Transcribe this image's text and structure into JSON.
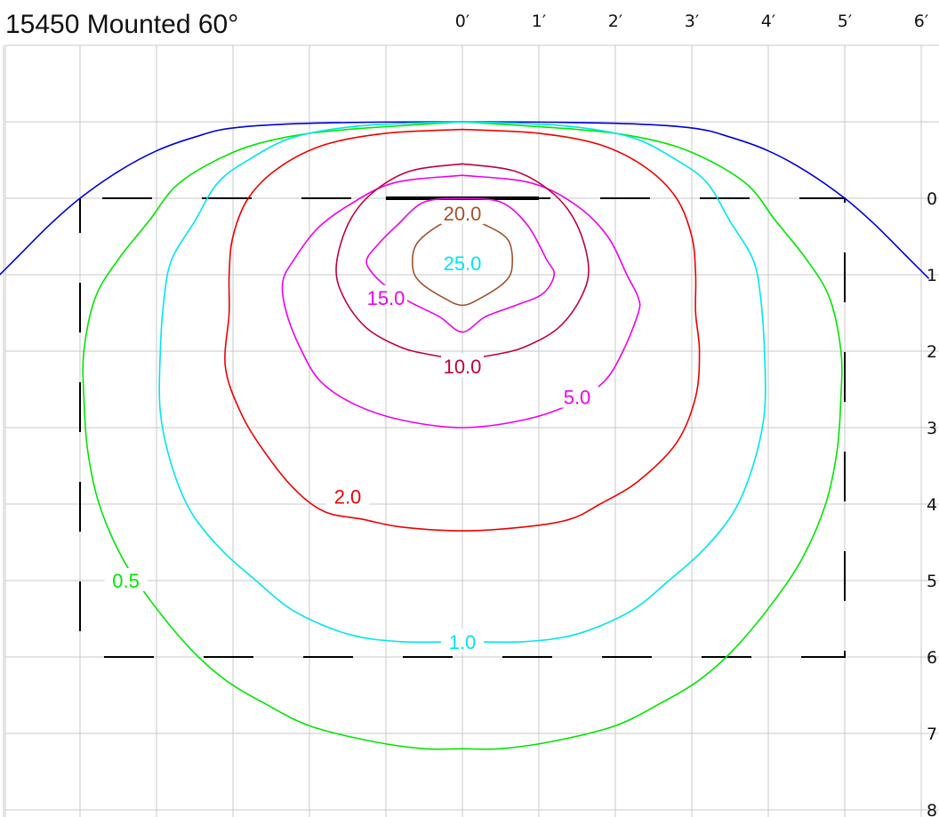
{
  "chart_data": {
    "type": "contour",
    "title": "15450 Mounted 60°",
    "x_tick_labels": [
      "0′",
      "1′",
      "2′",
      "3′",
      "4′",
      "5′",
      "6′"
    ],
    "y_tick_labels": [
      "0",
      "1",
      "2",
      "3",
      "4",
      "5",
      "6",
      "7",
      "8"
    ],
    "grid": true,
    "unit": "feet",
    "footprint_rectangle": {
      "x": [
        -5,
        5
      ],
      "y": [
        0,
        6
      ],
      "style": "dashed"
    },
    "fixture_bar": {
      "x": [
        -1,
        1
      ],
      "y": 0
    },
    "contours": [
      {
        "label": "0.5",
        "color": "#00e600",
        "label_pos": [
          -4.4,
          5.0
        ],
        "points": [
          [
            0,
            -1
          ],
          [
            1.5,
            -0.9
          ],
          [
            2.3,
            -0.8
          ],
          [
            3.0,
            -0.6
          ],
          [
            3.7,
            -0.2
          ],
          [
            4.1,
            0.3
          ],
          [
            4.5,
            0.8
          ],
          [
            4.8,
            1.3
          ],
          [
            4.95,
            2.0
          ],
          [
            4.95,
            2.6
          ],
          [
            4.9,
            3.3
          ],
          [
            4.75,
            4.0
          ],
          [
            4.45,
            4.7
          ],
          [
            4.05,
            5.3
          ],
          [
            3.55,
            5.9
          ],
          [
            3.1,
            6.3
          ],
          [
            2.6,
            6.6
          ],
          [
            2.0,
            6.9
          ],
          [
            1.2,
            7.1
          ],
          [
            0.5,
            7.2
          ],
          [
            0,
            7.2
          ],
          [
            -0.5,
            7.2
          ],
          [
            -1.2,
            7.1
          ],
          [
            -2.0,
            6.9
          ],
          [
            -2.6,
            6.6
          ],
          [
            -3.1,
            6.3
          ],
          [
            -3.55,
            5.9
          ],
          [
            -4.05,
            5.3
          ],
          [
            -4.45,
            4.7
          ],
          [
            -4.75,
            4.0
          ],
          [
            -4.9,
            3.3
          ],
          [
            -4.95,
            2.6
          ],
          [
            -4.95,
            2.0
          ],
          [
            -4.8,
            1.3
          ],
          [
            -4.5,
            0.8
          ],
          [
            -4.1,
            0.3
          ],
          [
            -3.7,
            -0.2
          ],
          [
            -3.0,
            -0.6
          ],
          [
            -2.3,
            -0.8
          ],
          [
            -1.5,
            -0.9
          ],
          [
            0,
            -1
          ]
        ]
      },
      {
        "label": "1.0",
        "color": "#00e5ee",
        "label_pos": [
          0,
          5.8
        ],
        "points": [
          [
            0,
            -1
          ],
          [
            1.3,
            -0.95
          ],
          [
            2.2,
            -0.8
          ],
          [
            2.8,
            -0.5
          ],
          [
            3.2,
            -0.2
          ],
          [
            3.5,
            0.3
          ],
          [
            3.8,
            0.8
          ],
          [
            3.9,
            1.3
          ],
          [
            3.95,
            2.0
          ],
          [
            3.95,
            2.8
          ],
          [
            3.8,
            3.5
          ],
          [
            3.55,
            4.1
          ],
          [
            3.15,
            4.6
          ],
          [
            2.7,
            5.0
          ],
          [
            2.2,
            5.4
          ],
          [
            1.5,
            5.7
          ],
          [
            0.8,
            5.8
          ],
          [
            0,
            5.8
          ],
          [
            -0.8,
            5.8
          ],
          [
            -1.5,
            5.7
          ],
          [
            -2.2,
            5.4
          ],
          [
            -2.7,
            5.0
          ],
          [
            -3.15,
            4.6
          ],
          [
            -3.55,
            4.1
          ],
          [
            -3.8,
            3.5
          ],
          [
            -3.95,
            2.8
          ],
          [
            -3.95,
            2.0
          ],
          [
            -3.9,
            1.3
          ],
          [
            -3.8,
            0.8
          ],
          [
            -3.5,
            0.3
          ],
          [
            -3.2,
            -0.2
          ],
          [
            -2.8,
            -0.5
          ],
          [
            -2.2,
            -0.8
          ],
          [
            -1.3,
            -0.95
          ],
          [
            0,
            -1
          ]
        ]
      },
      {
        "label": "2.0",
        "color": "#ee0000",
        "label_pos": [
          -1.5,
          3.9
        ],
        "points": [
          [
            0,
            -0.9
          ],
          [
            1.0,
            -0.85
          ],
          [
            1.8,
            -0.7
          ],
          [
            2.4,
            -0.4
          ],
          [
            2.8,
            0.0
          ],
          [
            3.0,
            0.5
          ],
          [
            3.05,
            1.0
          ],
          [
            3.05,
            1.5
          ],
          [
            3.1,
            2.0
          ],
          [
            3.05,
            2.6
          ],
          [
            2.8,
            3.2
          ],
          [
            2.3,
            3.7
          ],
          [
            1.8,
            4.0
          ],
          [
            1.4,
            4.2
          ],
          [
            0.8,
            4.3
          ],
          [
            0,
            4.35
          ],
          [
            -0.8,
            4.3
          ],
          [
            -1.3,
            4.2
          ],
          [
            -1.8,
            4.1
          ],
          [
            -2.2,
            3.8
          ],
          [
            -2.6,
            3.3
          ],
          [
            -2.9,
            2.8
          ],
          [
            -3.1,
            2.2
          ],
          [
            -3.05,
            1.5
          ],
          [
            -3.05,
            1.0
          ],
          [
            -3.0,
            0.5
          ],
          [
            -2.8,
            0.0
          ],
          [
            -2.4,
            -0.4
          ],
          [
            -1.8,
            -0.7
          ],
          [
            -1.0,
            -0.85
          ],
          [
            0,
            -0.9
          ]
        ]
      },
      {
        "label": "5.0",
        "color": "#ee00ee",
        "label_pos": [
          1.5,
          2.6
        ],
        "points": [
          [
            0,
            -0.3
          ],
          [
            0.9,
            -0.2
          ],
          [
            1.5,
            0.1
          ],
          [
            1.9,
            0.5
          ],
          [
            2.15,
            1.0
          ],
          [
            2.3,
            1.3
          ],
          [
            2.3,
            1.5
          ],
          [
            2.1,
            2.0
          ],
          [
            1.85,
            2.4
          ],
          [
            1.4,
            2.7
          ],
          [
            0.8,
            2.9
          ],
          [
            0,
            3.0
          ],
          [
            -0.8,
            2.9
          ],
          [
            -1.4,
            2.7
          ],
          [
            -1.85,
            2.4
          ],
          [
            -2.1,
            2.0
          ],
          [
            -2.3,
            1.5
          ],
          [
            -2.35,
            1.1
          ],
          [
            -2.2,
            0.8
          ],
          [
            -1.9,
            0.4
          ],
          [
            -1.5,
            0.1
          ],
          [
            -0.9,
            -0.2
          ],
          [
            0,
            -0.3
          ]
        ]
      },
      {
        "label": "10.0",
        "color": "#c0003a",
        "label_pos": [
          0,
          2.2
        ],
        "points": [
          [
            0,
            -0.45
          ],
          [
            0.7,
            -0.35
          ],
          [
            1.2,
            -0.05
          ],
          [
            1.5,
            0.35
          ],
          [
            1.65,
            0.9
          ],
          [
            1.55,
            1.3
          ],
          [
            1.25,
            1.7
          ],
          [
            0.8,
            1.95
          ],
          [
            0.4,
            2.05
          ],
          [
            0,
            2.1
          ],
          [
            -0.4,
            2.05
          ],
          [
            -0.8,
            1.95
          ],
          [
            -1.25,
            1.7
          ],
          [
            -1.55,
            1.3
          ],
          [
            -1.65,
            0.9
          ],
          [
            -1.5,
            0.35
          ],
          [
            -1.2,
            -0.05
          ],
          [
            -0.7,
            -0.35
          ],
          [
            0,
            -0.45
          ]
        ]
      },
      {
        "label": "15.0",
        "color": "#ee00ee",
        "label_pos": [
          -1.0,
          1.3
        ],
        "points": [
          [
            0,
            0.0
          ],
          [
            0.5,
            0.05
          ],
          [
            0.85,
            0.35
          ],
          [
            1.1,
            0.8
          ],
          [
            1.2,
            1.0
          ],
          [
            1.05,
            1.25
          ],
          [
            0.7,
            1.4
          ],
          [
            0.3,
            1.55
          ],
          [
            0,
            1.75
          ],
          [
            -0.3,
            1.55
          ],
          [
            -0.7,
            1.35
          ],
          [
            -1.0,
            1.15
          ],
          [
            -1.2,
            0.95
          ],
          [
            -1.25,
            0.8
          ],
          [
            -1.1,
            0.6
          ],
          [
            -0.85,
            0.35
          ],
          [
            -0.5,
            0.05
          ],
          [
            0,
            0.0
          ]
        ]
      },
      {
        "label": "20.0",
        "color": "#a0522d",
        "label_pos": [
          0,
          0.2
        ],
        "points": [
          [
            0,
            0.25
          ],
          [
            0.3,
            0.35
          ],
          [
            0.6,
            0.55
          ],
          [
            0.65,
            0.9
          ],
          [
            0.55,
            1.1
          ],
          [
            0.25,
            1.3
          ],
          [
            0,
            1.4
          ],
          [
            -0.25,
            1.3
          ],
          [
            -0.55,
            1.1
          ],
          [
            -0.65,
            0.9
          ],
          [
            -0.6,
            0.6
          ],
          [
            -0.3,
            0.35
          ],
          [
            0,
            0.25
          ]
        ]
      }
    ],
    "inner_label": {
      "label": "25.0",
      "color": "#00e5ee",
      "pos": [
        0,
        0.85
      ]
    },
    "boundary_curve": {
      "color": "#0000dd",
      "points": [
        [
          -6.1,
          1.05
        ],
        [
          -5.8,
          0.75
        ],
        [
          -5.4,
          0.35
        ],
        [
          -5.0,
          0.0
        ],
        [
          -4.5,
          -0.35
        ],
        [
          -4.0,
          -0.62
        ],
        [
          -3.5,
          -0.8
        ],
        [
          -3.0,
          -0.92
        ],
        [
          -2.0,
          -0.98
        ],
        [
          0,
          -1.0
        ],
        [
          2.0,
          -0.98
        ],
        [
          3.0,
          -0.92
        ],
        [
          3.5,
          -0.8
        ],
        [
          4.0,
          -0.62
        ],
        [
          4.5,
          -0.35
        ],
        [
          5.0,
          0.0
        ],
        [
          5.4,
          0.35
        ],
        [
          5.8,
          0.75
        ],
        [
          6.1,
          1.05
        ]
      ]
    }
  }
}
